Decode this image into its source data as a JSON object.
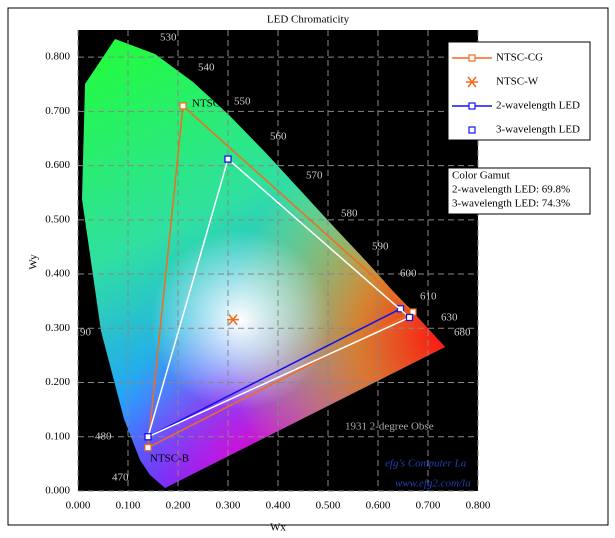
{
  "chart_data": {
    "type": "line",
    "title": "LED Chromaticity",
    "x_label": "Wx",
    "y_label": "Wy",
    "xlim": [
      0,
      0.8
    ],
    "ylim": [
      0,
      0.85
    ],
    "xticks": [
      {
        "value": 0,
        "label": "0.000"
      },
      {
        "value": 0.1,
        "label": "0.100"
      },
      {
        "value": 0.2,
        "label": "0.200"
      },
      {
        "value": 0.3,
        "label": "0.300"
      },
      {
        "value": 0.4,
        "label": "0.400"
      },
      {
        "value": 0.5,
        "label": "0.500"
      },
      {
        "value": 0.6,
        "label": "0.600"
      },
      {
        "value": 0.7,
        "label": "0.700"
      },
      {
        "value": 0.8,
        "label": "0.800"
      }
    ],
    "yticks": [
      {
        "value": 0,
        "label": "0.000"
      },
      {
        "value": 0.1,
        "label": "0.100"
      },
      {
        "value": 0.2,
        "label": "0.200"
      },
      {
        "value": 0.3,
        "label": "0.300"
      },
      {
        "value": 0.4,
        "label": "0.400"
      },
      {
        "value": 0.5,
        "label": "0.500"
      },
      {
        "value": 0.6,
        "label": "0.600"
      },
      {
        "value": 0.7,
        "label": "0.700"
      },
      {
        "value": 0.8,
        "label": "0.800"
      }
    ],
    "grid": true,
    "legend": "upper right",
    "series": [
      {
        "name": "NTSC-CG",
        "color": "#f26c1c",
        "marker": "square",
        "line": true,
        "x": [
          0.21,
          0.67,
          0.14,
          0.21
        ],
        "values": [
          0.71,
          0.33,
          0.08,
          0.71
        ]
      },
      {
        "name": "NTSC-W",
        "color": "#f26c1c",
        "marker": "asterisk",
        "line": false,
        "x": [
          0.31
        ],
        "values": [
          0.316
        ]
      },
      {
        "name": "2-wavelength LED",
        "color": "#1010ee",
        "marker": "square",
        "line": true,
        "x": [
          0.14,
          0.645
        ],
        "values": [
          0.1,
          0.336
        ]
      },
      {
        "name": "3-wavelength LED",
        "color": "#ffffff",
        "marker": "square",
        "line": true,
        "x": [
          0.3,
          0.663,
          0.14,
          0.3
        ],
        "values": [
          0.612,
          0.32,
          0.1,
          0.612
        ]
      }
    ],
    "gamut_box": {
      "title": "Color Gamut",
      "lines": [
        "2-wavelength LED: 69.8%",
        "3-wavelength LED: 74.3%"
      ]
    },
    "locus_labels": [
      "530",
      "540",
      "550",
      "560",
      "570",
      "580",
      "590",
      "600",
      "610",
      "630",
      "680",
      "90",
      "480",
      "470"
    ],
    "annotations": [
      "NTSC-G",
      "NTSC-B",
      "1931 2-degree Obse",
      "efg's Computer La",
      "www.efg2.com/la"
    ]
  }
}
